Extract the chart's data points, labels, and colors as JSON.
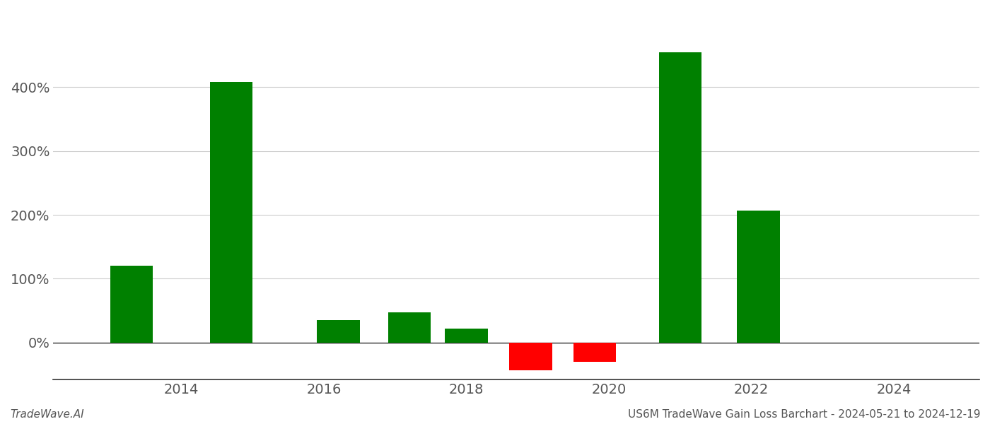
{
  "years": [
    2013.3,
    2014.7,
    2016.2,
    2017.2,
    2018.0,
    2018.9,
    2019.8,
    2021.0,
    2022.1,
    2023.5
  ],
  "values": [
    1.2,
    4.08,
    0.35,
    0.47,
    0.22,
    -0.43,
    -0.3,
    4.55,
    2.07,
    0.0
  ],
  "bar_colors": [
    "#008000",
    "#008000",
    "#008000",
    "#008000",
    "#008000",
    "#ff0000",
    "#ff0000",
    "#008000",
    "#008000",
    "#008000"
  ],
  "bar_width": 0.6,
  "xlim": [
    2012.2,
    2025.2
  ],
  "ylim": [
    -0.58,
    5.2
  ],
  "yticks": [
    0.0,
    1.0,
    2.0,
    3.0,
    4.0
  ],
  "ytick_labels": [
    "0%",
    "100%",
    "200%",
    "300%",
    "400%"
  ],
  "xticks": [
    2014,
    2016,
    2018,
    2020,
    2022,
    2024
  ],
  "xtick_labels": [
    "2014",
    "2016",
    "2018",
    "2020",
    "2022",
    "2024"
  ],
  "grid_color": "#cccccc",
  "background_color": "#ffffff",
  "footer_left": "TradeWave.AI",
  "footer_right": "US6M TradeWave Gain Loss Barchart - 2024-05-21 to 2024-12-19",
  "footer_fontsize": 11,
  "tick_fontsize": 14,
  "spine_color": "#333333"
}
